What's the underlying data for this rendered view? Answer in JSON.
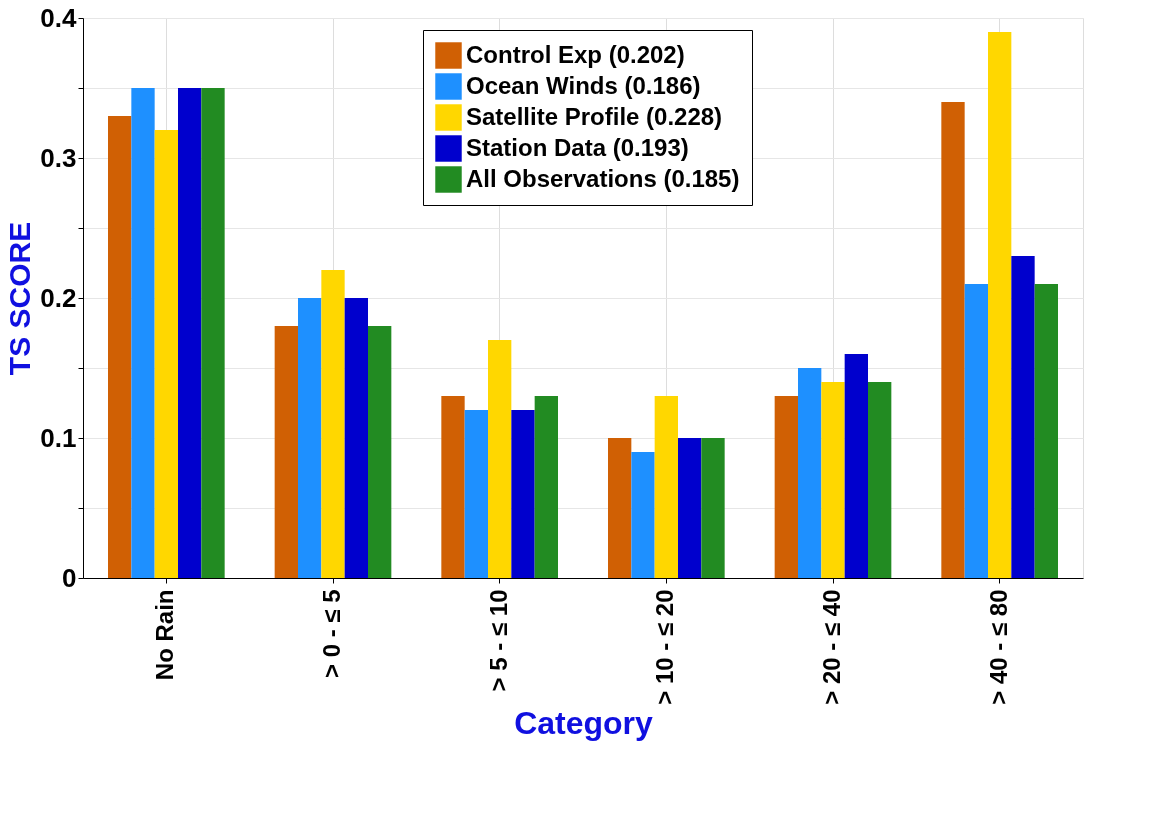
{
  "chart_data": {
    "type": "bar",
    "xlabel": "Category",
    "ylabel": "TS  SCORE",
    "categories": [
      "No Rain",
      "> 0 - ≤ 5",
      "> 5 - ≤ 10",
      "> 10 - ≤ 20",
      "> 20 - ≤ 40",
      "> 40 - ≤ 80"
    ],
    "series": [
      {
        "name": "Control Exp (0.202)",
        "color": "#d06004",
        "values": [
          0.33,
          0.18,
          0.13,
          0.1,
          0.13,
          0.34
        ]
      },
      {
        "name": "Ocean Winds (0.186)",
        "color": "#1e90ff",
        "values": [
          0.35,
          0.2,
          0.12,
          0.09,
          0.15,
          0.21
        ]
      },
      {
        "name": "Satellite Profile (0.228)",
        "color": "#ffd700",
        "values": [
          0.32,
          0.22,
          0.17,
          0.13,
          0.14,
          0.39
        ]
      },
      {
        "name": "Station Data (0.193)",
        "color": "#0000cd",
        "values": [
          0.35,
          0.2,
          0.12,
          0.1,
          0.16,
          0.23
        ]
      },
      {
        "name": "All Observations (0.185)",
        "color": "#228b22",
        "values": [
          0.35,
          0.18,
          0.13,
          0.1,
          0.14,
          0.21
        ]
      }
    ],
    "ylim": [
      0,
      0.4
    ],
    "yticks": [
      0,
      {
        "value": 0.05,
        "label": null
      },
      0.1,
      {
        "value": 0.15,
        "label": null
      },
      0.2,
      {
        "value": 0.25,
        "label": null
      },
      0.3,
      {
        "value": 0.35,
        "label": null
      },
      0.4
    ],
    "grid": true,
    "legend": "top right"
  }
}
